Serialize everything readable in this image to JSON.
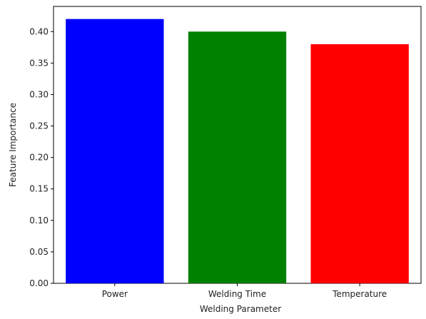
{
  "chart_data": {
    "type": "bar",
    "title": "",
    "xlabel": "Welding Parameter",
    "ylabel": "Feature Importance",
    "categories": [
      "Power",
      "Welding Time",
      "Temperature"
    ],
    "values": [
      0.42,
      0.4,
      0.38
    ],
    "colors": [
      "#0000ff",
      "#008000",
      "#ff0000"
    ],
    "ylim": [
      0,
      0.44
    ],
    "yticks": [
      "0.00",
      "0.05",
      "0.10",
      "0.15",
      "0.20",
      "0.25",
      "0.30",
      "0.35",
      "0.40"
    ],
    "grid": false,
    "legend": "none"
  }
}
